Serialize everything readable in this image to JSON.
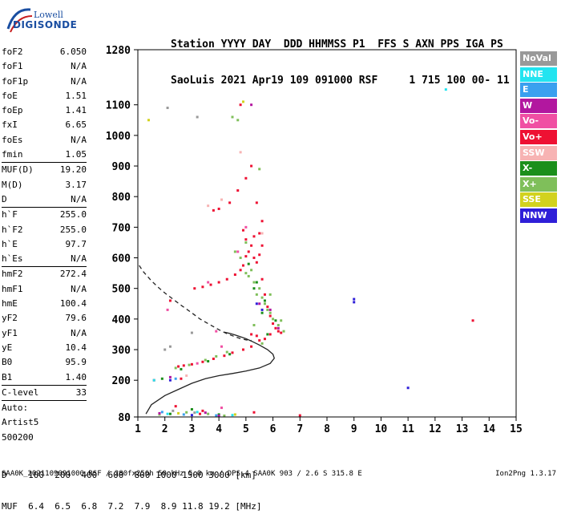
{
  "logo": {
    "line1": "Lowell",
    "line2": "DIGISONDE"
  },
  "header": {
    "line1": "Station YYYY DAY  DDD HHMMSS P1  FFS S AXN PPS IGA PS",
    "line2": "SaoLuis 2021 Apr19 109 091000 RSF     1 715 100 00- 11"
  },
  "params_group1": [
    {
      "label": "foF2",
      "value": "6.050"
    },
    {
      "label": "foF1",
      "value": "N/A"
    },
    {
      "label": "foF1p",
      "value": "N/A"
    },
    {
      "label": "foE",
      "value": "1.51"
    },
    {
      "label": "foEp",
      "value": "1.41"
    },
    {
      "label": "fxI",
      "value": "6.65"
    },
    {
      "label": "foEs",
      "value": "N/A"
    },
    {
      "label": "fmin",
      "value": "1.05"
    }
  ],
  "params_group2": [
    {
      "label": "MUF(D)",
      "value": "19.20"
    },
    {
      "label": "M(D)",
      "value": "3.17"
    },
    {
      "label": "D",
      "value": "N/A"
    }
  ],
  "params_group3": [
    {
      "label": "h`F",
      "value": "255.0"
    },
    {
      "label": "h`F2",
      "value": "255.0"
    },
    {
      "label": "h`E",
      "value": "97.7"
    },
    {
      "label": "h`Es",
      "value": "N/A"
    }
  ],
  "params_group4": [
    {
      "label": "hmF2",
      "value": "272.4"
    },
    {
      "label": "hmF1",
      "value": "N/A"
    },
    {
      "label": "hmE",
      "value": "100.4"
    },
    {
      "label": "yF2",
      "value": "79.6"
    },
    {
      "label": "yF1",
      "value": "N/A"
    },
    {
      "label": "yE",
      "value": "10.4"
    },
    {
      "label": "B0",
      "value": "95.9"
    },
    {
      "label": "B1",
      "value": "1.40"
    }
  ],
  "clevel": {
    "label": "C-level",
    "value": "33"
  },
  "auto": {
    "line1": "Auto:",
    "line2": "Artist5",
    "line3": "500200"
  },
  "legend": [
    {
      "label": "NoVal",
      "color": "#999999"
    },
    {
      "label": "NNE",
      "color": "#22e4f0"
    },
    {
      "label": "E",
      "color": "#3aa0ef"
    },
    {
      "label": "W",
      "color": "#b2179f"
    },
    {
      "label": "Vo-",
      "color": "#f04fa3"
    },
    {
      "label": "Vo+",
      "color": "#ee1133"
    },
    {
      "label": "SSW",
      "color": "#f7b3b3"
    },
    {
      "label": "X-",
      "color": "#1b8f1b"
    },
    {
      "label": "X+",
      "color": "#7fbf5a"
    },
    {
      "label": "SSE",
      "color": "#d2d21e"
    },
    {
      "label": "NNW",
      "color": "#2f1fd8"
    }
  ],
  "bottom": {
    "line1": "D    100  200  400  600  800 1000 1500 3000 [km]",
    "line2": "MUF  6.4  6.5  6.8  7.2  7.9  8.9 11.8 19.2 [MHz]"
  },
  "footer": "SAA0K_2021109091000.RSF / 280fx256h 50 kHz 5.0 km / DPS-4 SAA0K 903 / 2.6 S 315.8 E",
  "version": "Ion2Png 1.3.17",
  "chart_data": {
    "type": "scatter",
    "title": "",
    "xlabel": "",
    "ylabel": "",
    "xlim": [
      1,
      15
    ],
    "ylim": [
      80,
      1280
    ],
    "x_ticks": [
      1,
      2,
      3,
      4,
      5,
      6,
      7,
      8,
      9,
      10,
      11,
      12,
      13,
      14,
      15
    ],
    "y_ticks": [
      80,
      200,
      300,
      400,
      500,
      600,
      700,
      800,
      900,
      1000,
      1100,
      1280
    ],
    "traces": {
      "profile_solid": {
        "x": [
          1.3,
          1.5,
          2.0,
          2.5,
          3.0,
          3.5,
          4.0,
          4.5,
          5.0,
          5.5,
          5.9,
          6.05,
          6.0,
          5.8,
          5.5,
          5.2,
          5.0,
          4.8,
          4.6,
          4.4,
          4.2
        ],
        "y": [
          90,
          120,
          150,
          170,
          190,
          205,
          215,
          222,
          230,
          240,
          255,
          272,
          285,
          300,
          315,
          328,
          336,
          342,
          348,
          353,
          357
        ]
      },
      "profile_dashed": {
        "x": [
          1.05,
          1.2,
          1.5,
          1.8,
          2.0,
          2.3,
          2.6,
          3.0,
          3.3,
          3.6,
          4.0,
          4.3,
          4.6,
          4.8,
          5.0,
          5.2
        ],
        "y": [
          575,
          555,
          525,
          500,
          485,
          465,
          445,
          420,
          400,
          385,
          365,
          352,
          342,
          336,
          332,
          330
        ]
      }
    },
    "series": [
      {
        "name": "Vo+",
        "points": [
          [
            5.0,
            605
          ],
          [
            5.1,
            620
          ],
          [
            5.2,
            640
          ],
          [
            5.3,
            600
          ],
          [
            5.4,
            585
          ],
          [
            5.5,
            610
          ],
          [
            4.8,
            560
          ],
          [
            4.9,
            575
          ],
          [
            4.6,
            545
          ],
          [
            4.3,
            530
          ],
          [
            4.0,
            520
          ],
          [
            3.7,
            512
          ],
          [
            3.4,
            505
          ],
          [
            3.1,
            500
          ],
          [
            5.6,
            530
          ],
          [
            5.7,
            480
          ],
          [
            5.8,
            440
          ],
          [
            5.9,
            410
          ],
          [
            6.0,
            385
          ],
          [
            6.1,
            370
          ],
          [
            6.2,
            360
          ],
          [
            5.9,
            350
          ],
          [
            5.5,
            330
          ],
          [
            5.2,
            310
          ],
          [
            4.9,
            300
          ],
          [
            4.5,
            290
          ],
          [
            4.2,
            280
          ],
          [
            3.8,
            270
          ],
          [
            3.4,
            260
          ],
          [
            3.0,
            252
          ],
          [
            2.7,
            248
          ],
          [
            2.5,
            245
          ],
          [
            4.8,
            1100
          ],
          [
            4.4,
            780
          ],
          [
            4.7,
            820
          ],
          [
            5.0,
            860
          ],
          [
            5.2,
            900
          ],
          [
            5.4,
            780
          ],
          [
            5.6,
            720
          ],
          [
            5.5,
            680
          ],
          [
            4.9,
            690
          ],
          [
            4.0,
            760
          ],
          [
            3.8,
            755
          ],
          [
            2.2,
            460
          ],
          [
            1.6,
            200
          ],
          [
            2.4,
            115
          ],
          [
            3.4,
            100
          ],
          [
            5.3,
            95
          ],
          [
            7.0,
            85
          ],
          [
            13.4,
            395
          ],
          [
            5.2,
            350
          ],
          [
            5.4,
            345
          ],
          [
            5.7,
            335
          ],
          [
            6.3,
            355
          ],
          [
            5.0,
            660
          ],
          [
            5.3,
            670
          ],
          [
            5.6,
            640
          ],
          [
            2.6,
            205
          ],
          [
            3.3,
            90
          ]
        ]
      },
      {
        "name": "X+",
        "points": [
          [
            5.0,
            550
          ],
          [
            5.2,
            560
          ],
          [
            5.3,
            520
          ],
          [
            5.5,
            500
          ],
          [
            5.6,
            470
          ],
          [
            5.7,
            450
          ],
          [
            5.8,
            430
          ],
          [
            5.9,
            420
          ],
          [
            6.0,
            400
          ],
          [
            6.2,
            380
          ],
          [
            6.4,
            360
          ],
          [
            5.4,
            480
          ],
          [
            5.1,
            540
          ],
          [
            4.8,
            600
          ],
          [
            4.6,
            620
          ],
          [
            5.0,
            650
          ],
          [
            5.3,
            380
          ],
          [
            5.6,
            320
          ],
          [
            4.3,
            292
          ],
          [
            3.9,
            278
          ],
          [
            3.5,
            266
          ],
          [
            2.9,
            250
          ],
          [
            2.4,
            240
          ],
          [
            4.7,
            1050
          ],
          [
            4.5,
            1060
          ],
          [
            5.5,
            890
          ],
          [
            3.6,
            90
          ],
          [
            2.8,
            95
          ],
          [
            4.2,
            84
          ],
          [
            1.8,
            88
          ],
          [
            5.9,
            480
          ],
          [
            6.3,
            395
          ]
        ]
      },
      {
        "name": "X-",
        "points": [
          [
            5.1,
            580
          ],
          [
            5.4,
            520
          ],
          [
            5.7,
            460
          ],
          [
            6.1,
            395
          ],
          [
            5.8,
            350
          ],
          [
            4.4,
            285
          ],
          [
            3.6,
            262
          ],
          [
            2.6,
            236
          ],
          [
            1.9,
            205
          ],
          [
            3.0,
            105
          ],
          [
            2.2,
            90
          ],
          [
            4.0,
            88
          ],
          [
            5.3,
            500
          ],
          [
            5.6,
            420
          ]
        ]
      },
      {
        "name": "W",
        "points": [
          [
            5.5,
            450
          ],
          [
            5.9,
            430
          ],
          [
            6.2,
            370
          ],
          [
            4.0,
            84
          ],
          [
            1.8,
            92
          ],
          [
            2.2,
            210
          ],
          [
            3.5,
            94
          ],
          [
            5.2,
            1100
          ]
        ]
      },
      {
        "name": "Vo-",
        "points": [
          [
            4.7,
            620
          ],
          [
            5.0,
            700
          ],
          [
            4.1,
            310
          ],
          [
            3.2,
            255
          ],
          [
            3.9,
            360
          ],
          [
            4.1,
            110
          ],
          [
            2.1,
            430
          ],
          [
            3.6,
            520
          ]
        ]
      },
      {
        "name": "NNE",
        "points": [
          [
            12.4,
            1150
          ],
          [
            1.6,
            200
          ],
          [
            2.1,
            90
          ],
          [
            3.2,
            96
          ],
          [
            4.5,
            86
          ]
        ]
      },
      {
        "name": "E",
        "points": [
          [
            2.4,
            205
          ],
          [
            1.9,
            96
          ],
          [
            2.7,
            88
          ],
          [
            3.9,
            85
          ]
        ]
      },
      {
        "name": "SSW",
        "points": [
          [
            3.6,
            770
          ],
          [
            4.1,
            790
          ],
          [
            4.8,
            945
          ],
          [
            2.8,
            215
          ],
          [
            5.6,
            680
          ]
        ]
      },
      {
        "name": "SSE",
        "points": [
          [
            1.4,
            1050
          ],
          [
            4.9,
            1110
          ],
          [
            2.5,
            92
          ],
          [
            4.6,
            88
          ]
        ]
      },
      {
        "name": "NNW",
        "points": [
          [
            9.0,
            465
          ],
          [
            9.0,
            455
          ],
          [
            11.0,
            175
          ],
          [
            5.4,
            450
          ],
          [
            5.6,
            430
          ],
          [
            2.2,
            200
          ],
          [
            3.0,
            86
          ]
        ]
      },
      {
        "name": "NoVal",
        "points": [
          [
            2.1,
            1090
          ],
          [
            3.2,
            1060
          ],
          [
            2.0,
            300
          ],
          [
            2.2,
            310
          ],
          [
            3.0,
            355
          ],
          [
            2.3,
            100
          ],
          [
            3.1,
            94
          ]
        ]
      }
    ]
  }
}
